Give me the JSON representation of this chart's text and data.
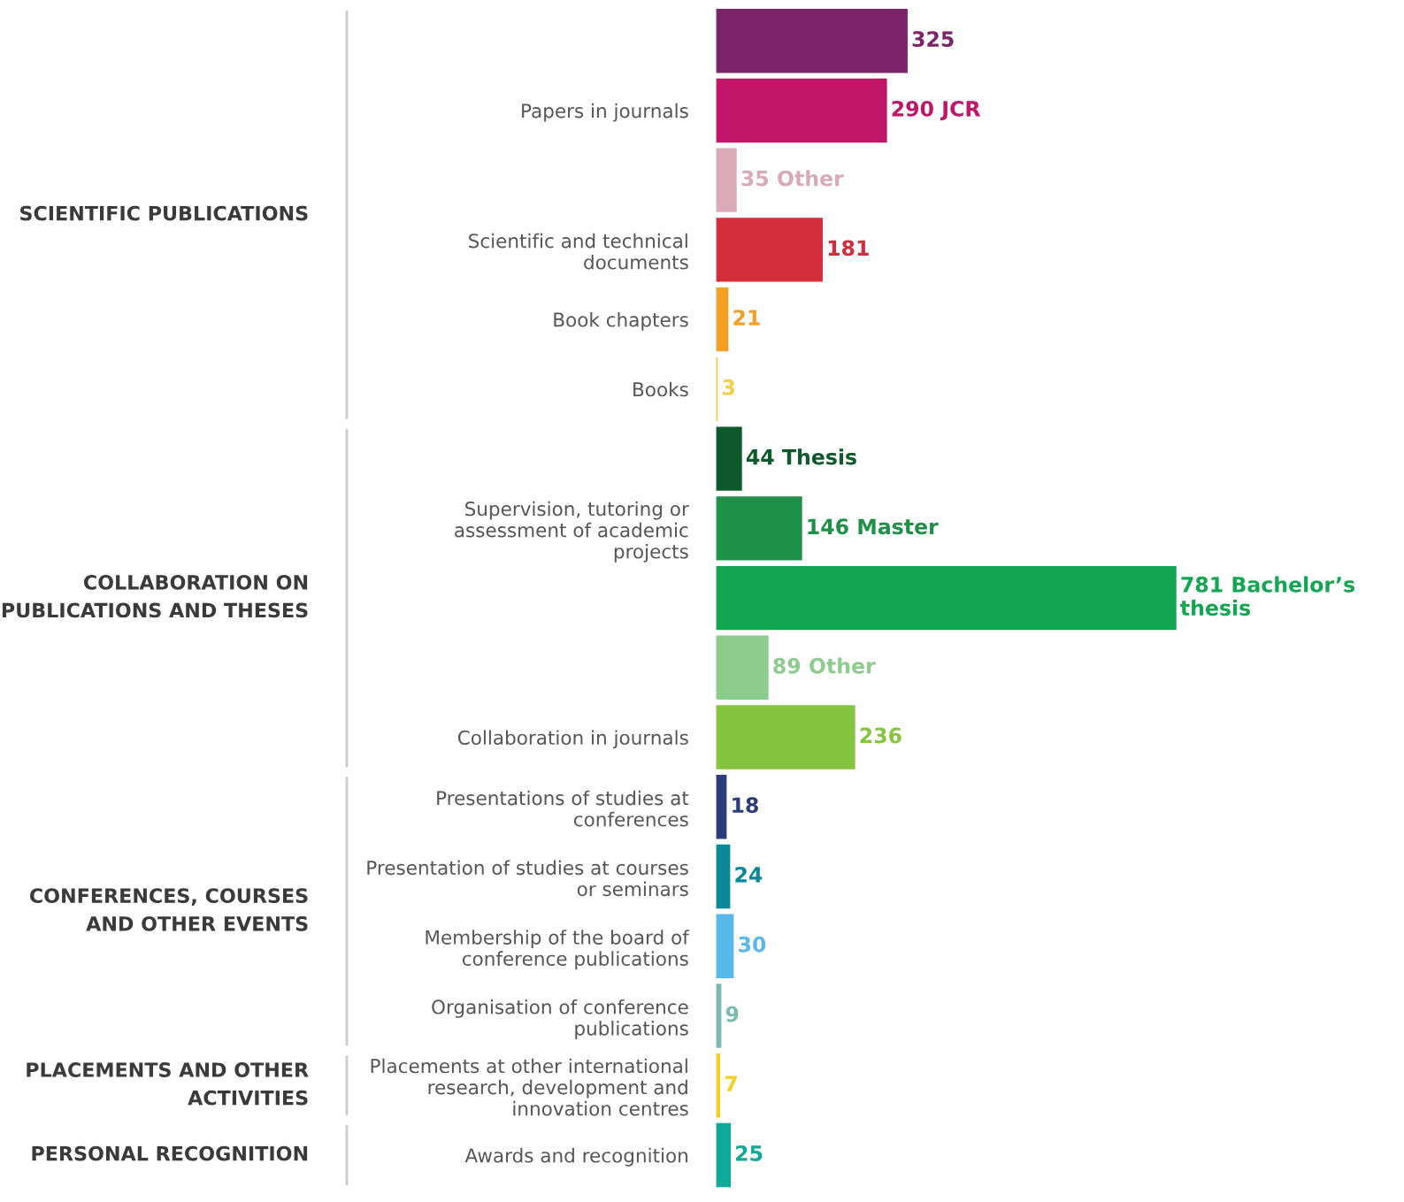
{
  "chart_data": {
    "type": "bar",
    "orientation": "horizontal",
    "tick_labels": "y",
    "grid": false,
    "legend": false,
    "categories": [
      null,
      "Papers in journals",
      null,
      "Scientific and technical\ndocuments",
      "Book chapters",
      "Books",
      null,
      "Supervision, tutoring or\nassessment of academic\nprojects",
      null,
      null,
      "Collaboration in journals",
      "Presentations of studies at\nconferences",
      "Presentation of studies at courses\nor seminars",
      "Membership of the board of\nconference publications",
      "Organisation of conference\npublications",
      "Placements at other international\nresearch, development and\ninnovation centres",
      "Awards and recognition"
    ],
    "values": [
      325,
      290,
      35,
      181,
      21,
      3,
      44,
      146,
      781,
      89,
      236,
      18,
      24,
      30,
      9,
      7,
      25
    ],
    "value_labels": [
      "325",
      "290 JCR",
      "35 Other",
      "181",
      "21",
      "3",
      "44 Thesis",
      "146 Master",
      "781 Bachelor’s\nthesis",
      "89 Other",
      "236",
      "18",
      "24",
      "30",
      "9",
      "7",
      "25"
    ],
    "colors": [
      "#7a2368",
      "#c0166a",
      "#d8aab8",
      "#d42c3c",
      "#f2a022",
      "#f0d050",
      "#0f5a2c",
      "#1e9048",
      "#12a552",
      "#8ccc8c",
      "#86c440",
      "#2c3c78",
      "#0a8898",
      "#58b8ea",
      "#78bcb0",
      "#f5d020",
      "#10a896"
    ],
    "annotations": [
      "SCIENTIFIC PUBLICATIONS",
      "COLLABORATION ON\nPUBLICATIONS AND THESES",
      "CONFERENCES, COURSES\nAND OTHER EVENTS",
      "PLACEMENTS AND OTHER\nACTIVITIES",
      "PERSONAL RECOGNITION"
    ]
  }
}
